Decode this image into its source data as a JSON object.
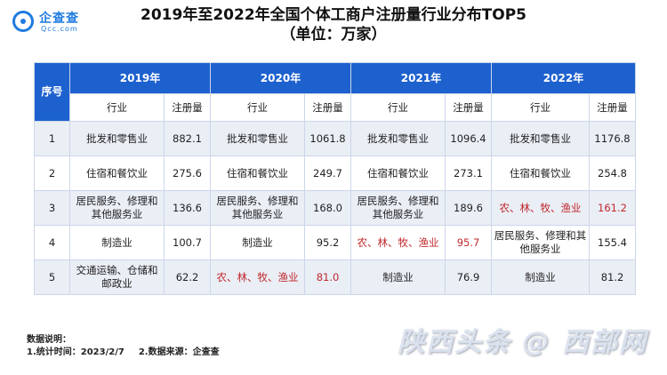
{
  "brand": {
    "name_cn": "企查查",
    "name_en": "Qcc.com"
  },
  "title": "2019年至2022年全国个体工商户注册量行业分布TOP5",
  "subtitle": "（单位：万家）",
  "table": {
    "index_header": "序号",
    "years": [
      "2019年",
      "2020年",
      "2021年",
      "2022年"
    ],
    "col_industry": "行业",
    "col_count": "注册量",
    "rows": [
      {
        "idx": "1",
        "cells": [
          {
            "industry": "批发和零售业",
            "value": "882.1",
            "hl": false
          },
          {
            "industry": "批发和零售业",
            "value": "1061.8",
            "hl": false
          },
          {
            "industry": "批发和零售业",
            "value": "1096.4",
            "hl": false
          },
          {
            "industry": "批发和零售业",
            "value": "1176.8",
            "hl": false
          }
        ]
      },
      {
        "idx": "2",
        "cells": [
          {
            "industry": "住宿和餐饮业",
            "value": "275.6",
            "hl": false
          },
          {
            "industry": "住宿和餐饮业",
            "value": "249.7",
            "hl": false
          },
          {
            "industry": "住宿和餐饮业",
            "value": "273.1",
            "hl": false
          },
          {
            "industry": "住宿和餐饮业",
            "value": "254.8",
            "hl": false
          }
        ]
      },
      {
        "idx": "3",
        "cells": [
          {
            "industry": "居民服务、修理和其他服务业",
            "value": "136.6",
            "hl": false
          },
          {
            "industry": "居民服务、修理和其他服务业",
            "value": "168.0",
            "hl": false
          },
          {
            "industry": "居民服务、修理和其他服务业",
            "value": "189.6",
            "hl": false
          },
          {
            "industry": "农、林、牧、渔业",
            "value": "161.2",
            "hl": true
          }
        ]
      },
      {
        "idx": "4",
        "cells": [
          {
            "industry": "制造业",
            "value": "100.7",
            "hl": false
          },
          {
            "industry": "制造业",
            "value": "95.2",
            "hl": false
          },
          {
            "industry": "农、林、牧、渔业",
            "value": "95.7",
            "hl": true
          },
          {
            "industry": "居民服务、修理和其他服务业",
            "value": "155.4",
            "hl": false
          }
        ]
      },
      {
        "idx": "5",
        "cells": [
          {
            "industry": "交通运输、仓储和邮政业",
            "value": "62.2",
            "hl": false
          },
          {
            "industry": "农、林、牧、渔业",
            "value": "81.0",
            "hl": true
          },
          {
            "industry": "制造业",
            "value": "76.9",
            "hl": false
          },
          {
            "industry": "制造业",
            "value": "81.2",
            "hl": false
          }
        ]
      }
    ]
  },
  "notes": {
    "heading": "数据说明：",
    "item1": "1.统计时间：2023/2/7",
    "item2": "2.数据来源：企查查"
  },
  "watermark": "陕西头条 @ 西部网",
  "colors": {
    "header_bg": "#1d61cf",
    "highlight": "#c0282d",
    "row_alt": "#eaeef5",
    "brand": "#1f7be0"
  }
}
